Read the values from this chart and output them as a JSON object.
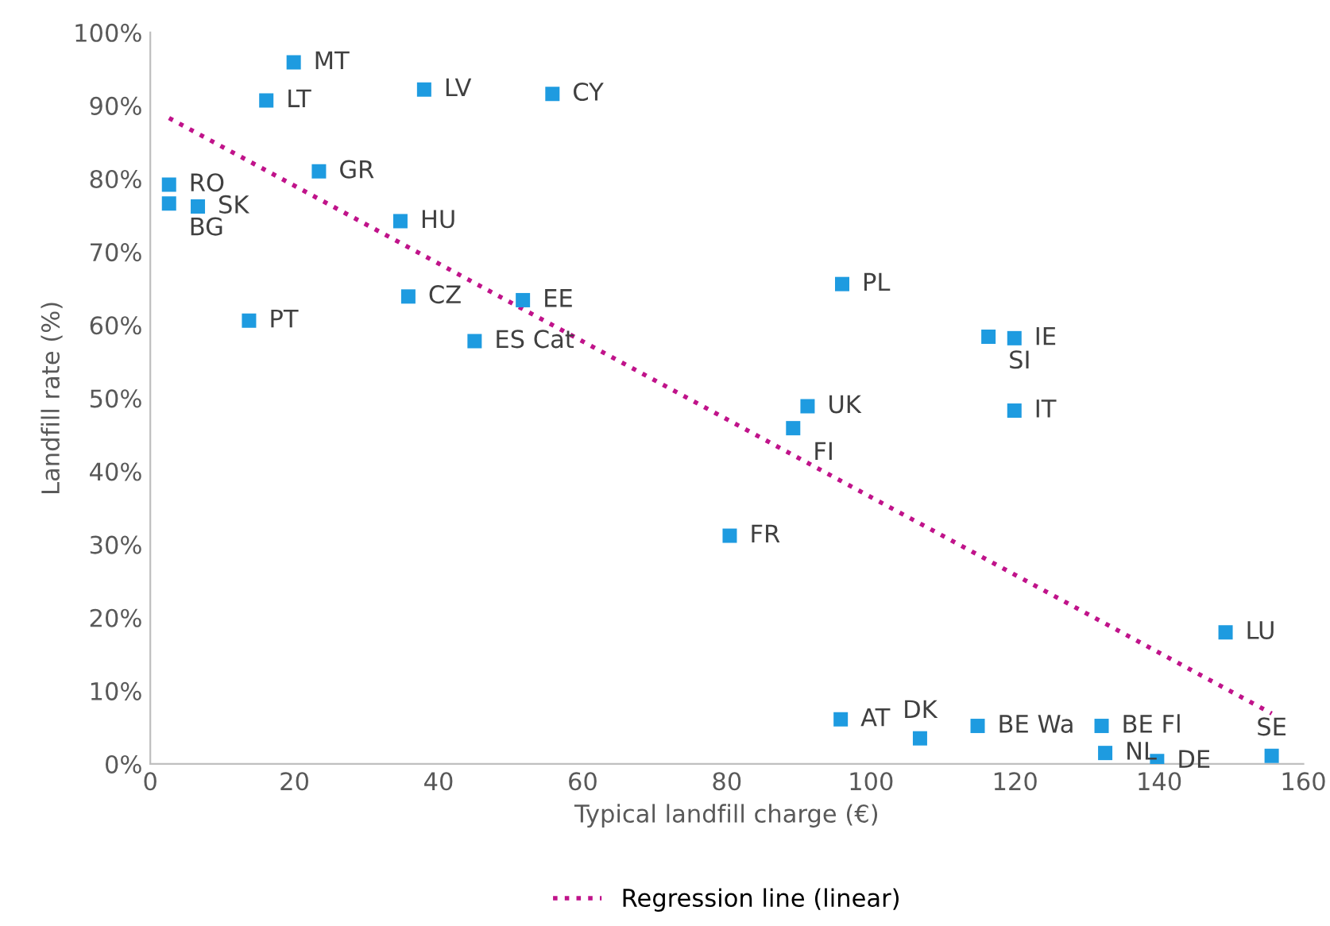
{
  "chart_data": {
    "type": "scatter",
    "xlabel": "Typical landfill charge (€)",
    "ylabel": "Landfill rate (%)",
    "xlim": [
      0,
      160
    ],
    "xticks": [
      0,
      20,
      40,
      60,
      80,
      100,
      120,
      140,
      160
    ],
    "ylim": [
      0,
      100
    ],
    "yticks": [
      {
        "value": 0,
        "label": "0%"
      },
      {
        "value": 10,
        "label": "10%"
      },
      {
        "value": 20,
        "label": "20%"
      },
      {
        "value": 30,
        "label": "30%"
      },
      {
        "value": 40,
        "label": "40%"
      },
      {
        "value": 50,
        "label": "50%"
      },
      {
        "value": 60,
        "label": "60%"
      },
      {
        "value": 70,
        "label": "70%"
      },
      {
        "value": 80,
        "label": "80%"
      },
      {
        "value": 90,
        "label": "90%"
      },
      {
        "value": 100,
        "label": "100%"
      }
    ],
    "grid": false,
    "legend": "bottom",
    "marker": "square",
    "series": [
      {
        "color": "#1e9be0",
        "x": [
          19.9,
          16.1,
          38.0,
          55.8,
          2.6,
          2.6,
          6.6,
          23.4,
          34.7,
          13.7,
          35.8,
          51.7,
          45.0,
          96.0,
          116.3,
          119.9,
          91.2,
          89.2,
          119.9,
          80.4,
          149.2,
          95.8,
          106.8,
          114.8,
          132.0,
          132.5,
          139.7,
          155.6
        ],
        "values": [
          95.9,
          90.7,
          92.2,
          91.6,
          79.2,
          76.6,
          76.2,
          81.0,
          74.2,
          60.6,
          63.9,
          63.4,
          57.8,
          65.6,
          58.4,
          58.2,
          48.9,
          45.9,
          48.3,
          31.2,
          18.0,
          6.1,
          3.5,
          5.2,
          5.2,
          1.5,
          0.4,
          1.1
        ]
      },
      {
        "type": "line",
        "name": "Regression line (linear)",
        "color": "#c0138a",
        "line_style": "dotted",
        "marker": "none",
        "x": [
          2.6,
          155.6
        ],
        "values": [
          88.3,
          6.9
        ]
      }
    ],
    "annotations": [
      {
        "text": "MT",
        "x": 19.9,
        "y": 95.9
      },
      {
        "text": "LT",
        "x": 16.1,
        "y": 90.7
      },
      {
        "text": "LV",
        "x": 38.0,
        "y": 92.2
      },
      {
        "text": "CY",
        "x": 55.8,
        "y": 91.6
      },
      {
        "text": "RO",
        "x": 2.6,
        "y": 79.2
      },
      {
        "text": "BG",
        "x": 2.6,
        "y": 76.6
      },
      {
        "text": "SK",
        "x": 6.6,
        "y": 76.2
      },
      {
        "text": "GR",
        "x": 23.4,
        "y": 81.0
      },
      {
        "text": "HU",
        "x": 34.7,
        "y": 74.2
      },
      {
        "text": "PT",
        "x": 13.7,
        "y": 60.6
      },
      {
        "text": "CZ",
        "x": 35.8,
        "y": 63.9
      },
      {
        "text": "EE",
        "x": 51.7,
        "y": 63.4
      },
      {
        "text": "ES Cat",
        "x": 45.0,
        "y": 57.8
      },
      {
        "text": "PL",
        "x": 96.0,
        "y": 65.6
      },
      {
        "text": "SI",
        "x": 116.3,
        "y": 58.4
      },
      {
        "text": "IE",
        "x": 119.9,
        "y": 58.2
      },
      {
        "text": "UK",
        "x": 91.2,
        "y": 48.9
      },
      {
        "text": "FI",
        "x": 89.2,
        "y": 45.9
      },
      {
        "text": "IT",
        "x": 119.9,
        "y": 48.3
      },
      {
        "text": "FR",
        "x": 80.4,
        "y": 31.2
      },
      {
        "text": "LU",
        "x": 149.2,
        "y": 18.0
      },
      {
        "text": "AT",
        "x": 95.8,
        "y": 6.1
      },
      {
        "text": "DK",
        "x": 106.8,
        "y": 3.5
      },
      {
        "text": "BE Wa",
        "x": 114.8,
        "y": 5.2
      },
      {
        "text": "BE Fl",
        "x": 132.0,
        "y": 5.2
      },
      {
        "text": "NL",
        "x": 132.5,
        "y": 1.5
      },
      {
        "text": "DE",
        "x": 139.7,
        "y": 0.4
      },
      {
        "text": "SE",
        "x": 155.6,
        "y": 1.1
      }
    ]
  }
}
